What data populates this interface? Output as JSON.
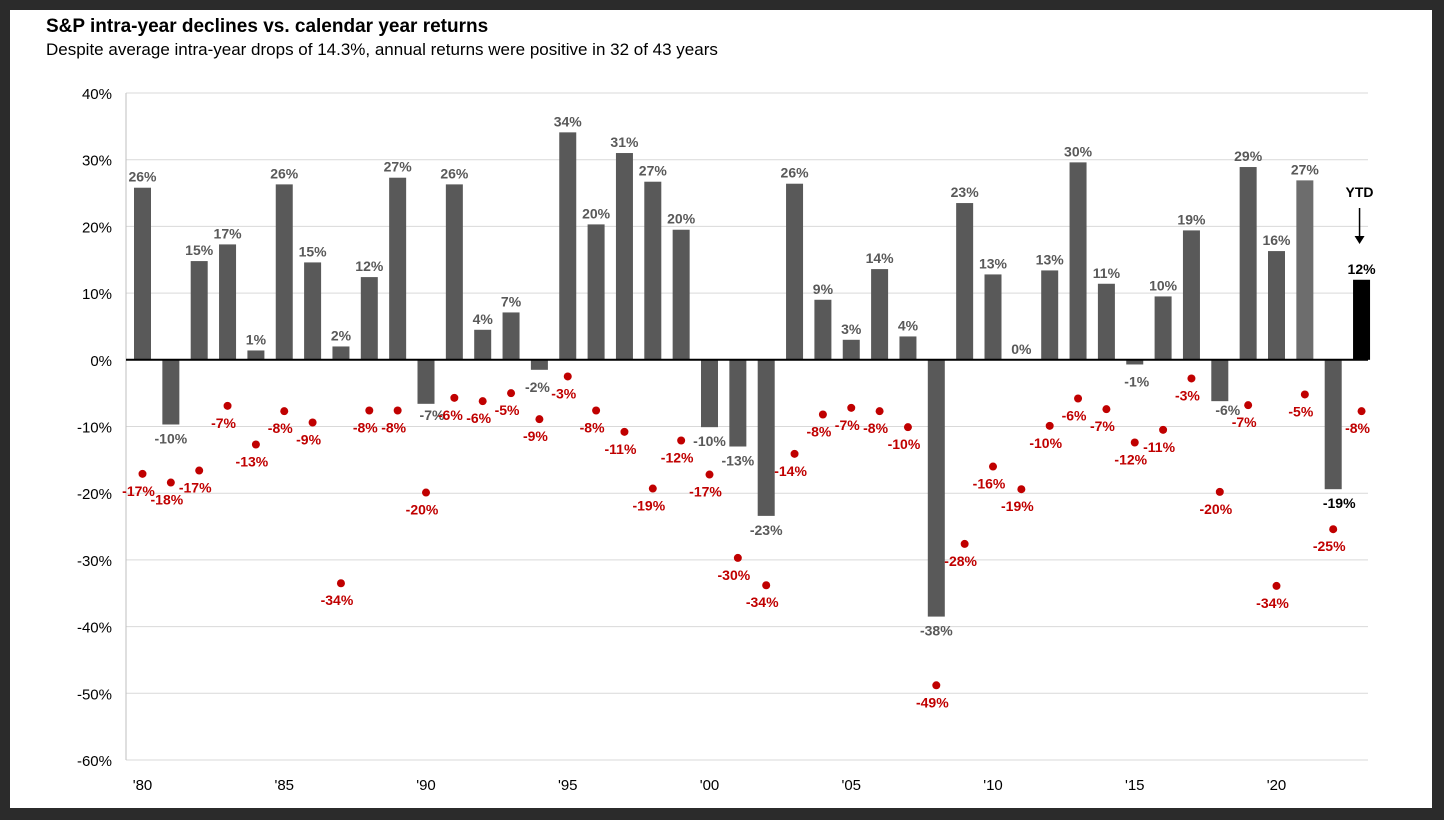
{
  "header": {
    "title": "S&P intra-year declines vs. calendar year returns",
    "subtitle": "Despite average intra-year drops of 14.3%, annual returns were positive in 32 of 43 years"
  },
  "chart_data": {
    "type": "bar",
    "title": "S&P intra-year declines vs. calendar year returns",
    "subtitle": "Despite average intra-year drops of 14.3%, annual returns were positive in 32 of 43 years",
    "years": [
      1980,
      1981,
      1982,
      1983,
      1984,
      1985,
      1986,
      1987,
      1988,
      1989,
      1990,
      1991,
      1992,
      1993,
      1994,
      1995,
      1996,
      1997,
      1998,
      1999,
      2000,
      2001,
      2002,
      2003,
      2004,
      2005,
      2006,
      2007,
      2008,
      2009,
      2010,
      2011,
      2012,
      2013,
      2014,
      2015,
      2016,
      2017,
      2018,
      2019,
      2020,
      2021,
      2022,
      2023
    ],
    "x_tick_labels": [
      {
        "year": 1980,
        "label": "'80"
      },
      {
        "year": 1985,
        "label": "'85"
      },
      {
        "year": 1990,
        "label": "'90"
      },
      {
        "year": 1995,
        "label": "'95"
      },
      {
        "year": 2000,
        "label": "'00"
      },
      {
        "year": 2005,
        "label": "'05"
      },
      {
        "year": 2010,
        "label": "'10"
      },
      {
        "year": 2015,
        "label": "'15"
      },
      {
        "year": 2020,
        "label": "'20"
      }
    ],
    "y_ticks": [
      {
        "value": 40,
        "label": "40%"
      },
      {
        "value": 30,
        "label": "30%"
      },
      {
        "value": 20,
        "label": "20%"
      },
      {
        "value": 10,
        "label": "10%"
      },
      {
        "value": 0,
        "label": "0%"
      },
      {
        "value": -10,
        "label": "-10%"
      },
      {
        "value": -20,
        "label": "-20%"
      },
      {
        "value": -30,
        "label": "-30%"
      },
      {
        "value": -40,
        "label": "-40%"
      },
      {
        "value": -50,
        "label": "-50%"
      },
      {
        "value": -60,
        "label": "-60%"
      }
    ],
    "ylim": [
      -60,
      40
    ],
    "grid": true,
    "series": [
      {
        "kind": "bar",
        "values": [
          25.8,
          -9.7,
          14.8,
          17.3,
          1.4,
          26.3,
          14.6,
          2.0,
          12.4,
          27.3,
          -6.6,
          26.3,
          4.5,
          7.1,
          -1.5,
          34.1,
          20.3,
          31.0,
          26.7,
          19.5,
          -10.1,
          -13.0,
          -23.4,
          26.4,
          9.0,
          3.0,
          13.6,
          3.5,
          -38.5,
          23.5,
          12.8,
          0.0,
          13.4,
          29.6,
          11.4,
          -0.7,
          9.5,
          19.4,
          -6.2,
          28.9,
          16.3,
          26.9,
          -19.4,
          12.0
        ],
        "labels": [
          "26%",
          "-10%",
          "15%",
          "17%",
          "1%",
          "26%",
          "15%",
          "2%",
          "12%",
          "27%",
          "-7%",
          "26%",
          "4%",
          "7%",
          "-2%",
          "34%",
          "20%",
          "31%",
          "27%",
          "20%",
          "-10%",
          "-13%",
          "-23%",
          "26%",
          "9%",
          "3%",
          "14%",
          "4%",
          "-38%",
          "23%",
          "13%",
          "0%",
          "13%",
          "30%",
          "11%",
          "-1%",
          "10%",
          "19%",
          "-6%",
          "29%",
          "16%",
          "27%",
          "-19%",
          "12%"
        ]
      },
      {
        "kind": "scatter",
        "values": [
          -17.1,
          -18.4,
          -16.6,
          -6.9,
          -12.7,
          -7.7,
          -9.4,
          -33.5,
          -7.6,
          -7.6,
          -19.9,
          -5.7,
          -6.2,
          -5.0,
          -8.9,
          -2.5,
          -7.6,
          -10.8,
          -19.3,
          -12.1,
          -17.2,
          -29.7,
          -33.8,
          -14.1,
          -8.2,
          -7.2,
          -7.7,
          -10.1,
          -48.8,
          -27.6,
          -16.0,
          -19.4,
          -9.9,
          -5.8,
          -7.4,
          -12.4,
          -10.5,
          -2.8,
          -19.8,
          -6.8,
          -33.9,
          -5.2,
          -25.4,
          -7.7
        ],
        "labels": [
          "-17%",
          "-18%",
          "-17%",
          "-7%",
          "-13%",
          "-8%",
          "-9%",
          "-34%",
          "-8%",
          "-8%",
          "-20%",
          "-6%",
          "-6%",
          "-5%",
          "-9%",
          "-3%",
          "-8%",
          "-11%",
          "-19%",
          "-12%",
          "-17%",
          "-30%",
          "-34%",
          "-14%",
          "-8%",
          "-7%",
          "-8%",
          "-10%",
          "-49%",
          "-28%",
          "-16%",
          "-19%",
          "-10%",
          "-6%",
          "-7%",
          "-12%",
          "-11%",
          "-3%",
          "-20%",
          "-7%",
          "-34%",
          "-5%",
          "-25%",
          "-8%"
        ]
      }
    ],
    "ytd_annotation": "YTD",
    "colors": {
      "bar": "#595959",
      "bar_2021": "#6d6d6d",
      "bar_ytd": "#000000",
      "dot": "#c00000",
      "grid": "#d9d9d9",
      "axis": "#000000"
    }
  }
}
